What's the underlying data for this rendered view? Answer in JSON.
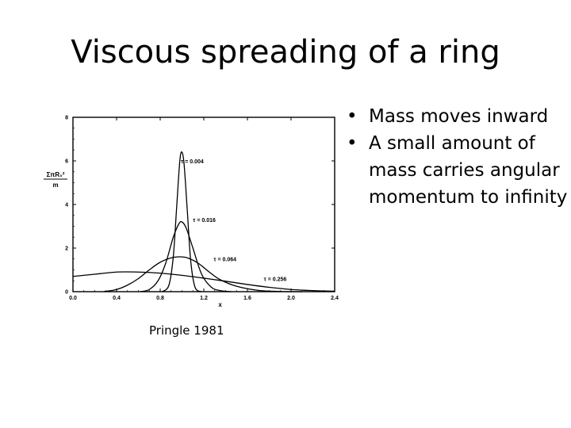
{
  "slide": {
    "title": "Viscous spreading of a ring",
    "bullets": [
      "Mass moves inward",
      "A small amount of mass carries angular momentum to infinity"
    ],
    "caption": "Pringle 1981"
  },
  "chart_data": {
    "type": "line",
    "title": "",
    "xlabel": "x",
    "ylabel_numerator": "ΣπR₀²",
    "ylabel_denominator": "m",
    "xlim": [
      0.0,
      2.4
    ],
    "ylim": [
      0,
      8
    ],
    "x_ticks": [
      "0.0",
      "0.4",
      "0.8",
      "1.2",
      "1.6",
      "2.0",
      "2.4"
    ],
    "y_ticks": [
      "0",
      "2",
      "4",
      "6",
      "8"
    ],
    "grid": false,
    "legend": "inline labels on curves",
    "series": [
      {
        "name": "τ = 0.004",
        "label_at": [
          0.99,
          5.9
        ],
        "x": [
          0.82,
          0.88,
          0.92,
          0.95,
          0.98,
          1.0,
          1.02,
          1.05,
          1.08,
          1.12,
          1.18
        ],
        "y": [
          0.0,
          0.3,
          1.6,
          3.8,
          6.0,
          6.4,
          5.8,
          3.6,
          1.4,
          0.2,
          0.0
        ]
      },
      {
        "name": "τ = 0.016",
        "label_at": [
          1.1,
          3.2
        ],
        "x": [
          0.62,
          0.7,
          0.78,
          0.85,
          0.92,
          0.97,
          1.0,
          1.04,
          1.1,
          1.18,
          1.27,
          1.35,
          1.45
        ],
        "y": [
          0.0,
          0.1,
          0.5,
          1.3,
          2.5,
          3.1,
          3.2,
          2.9,
          2.0,
          0.8,
          0.2,
          0.05,
          0.0
        ]
      },
      {
        "name": "τ = 0.064",
        "label_at": [
          1.29,
          1.4
        ],
        "x": [
          0.28,
          0.4,
          0.5,
          0.6,
          0.7,
          0.8,
          0.9,
          0.98,
          1.05,
          1.15,
          1.25,
          1.35,
          1.5,
          1.7,
          1.9,
          2.1
        ],
        "y": [
          0.0,
          0.1,
          0.3,
          0.6,
          1.0,
          1.35,
          1.55,
          1.6,
          1.55,
          1.3,
          0.9,
          0.55,
          0.25,
          0.06,
          0.01,
          0.0
        ]
      },
      {
        "name": "τ = 0.256",
        "label_at": [
          1.75,
          0.5
        ],
        "x": [
          0.0,
          0.2,
          0.4,
          0.6,
          0.8,
          1.0,
          1.2,
          1.4,
          1.6,
          1.8,
          2.0,
          2.2,
          2.4
        ],
        "y": [
          0.7,
          0.8,
          0.9,
          0.9,
          0.85,
          0.75,
          0.62,
          0.48,
          0.33,
          0.2,
          0.1,
          0.05,
          0.02
        ]
      }
    ]
  }
}
